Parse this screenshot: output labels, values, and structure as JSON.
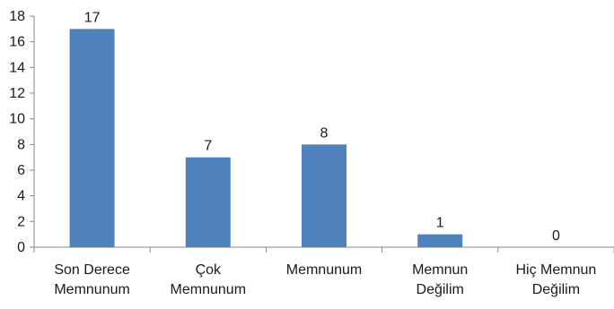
{
  "chart_data": {
    "type": "bar",
    "categories": [
      [
        "Son Derece",
        "Memnunum"
      ],
      [
        "Çok",
        "Memnunum"
      ],
      [
        "Memnunum"
      ],
      [
        "Memnun",
        "Değilim"
      ],
      [
        "Hiç Memnun",
        "Değilim"
      ]
    ],
    "values": [
      17,
      7,
      8,
      1,
      0
    ],
    "data_labels": [
      "17",
      "7",
      "8",
      "1",
      "0"
    ],
    "yticks": [
      "0",
      "2",
      "4",
      "6",
      "8",
      "10",
      "12",
      "14",
      "16",
      "18"
    ],
    "ylim": [
      0,
      18
    ],
    "grid": false,
    "legend": "none",
    "bar_color": "#4F81BD",
    "axis_color": "#868686"
  }
}
